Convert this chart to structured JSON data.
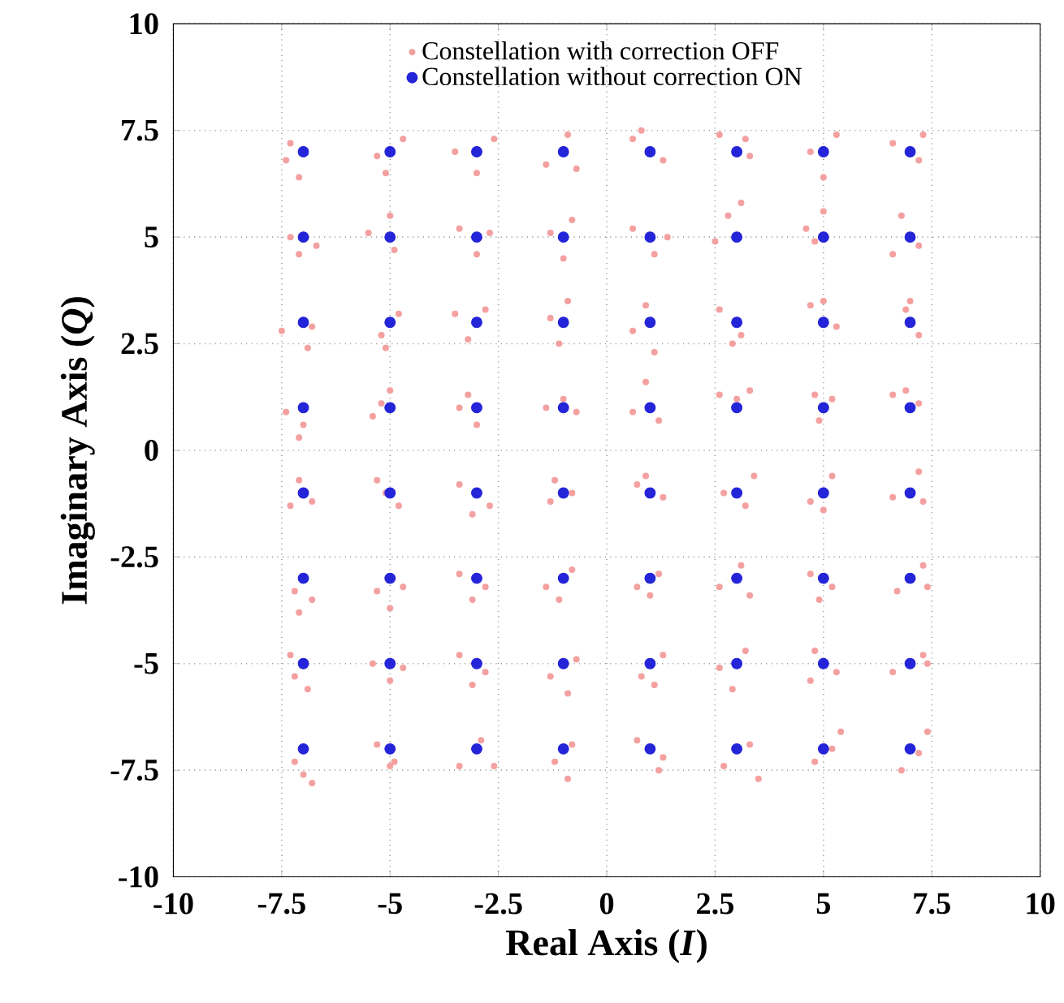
{
  "chart_data": {
    "type": "scatter",
    "xlabel": "Real Axis (*I*)",
    "ylabel": "Imaginary Axis (*Q*)",
    "xlim": [
      -10,
      10
    ],
    "ylim": [
      -10,
      10
    ],
    "xticks": [
      -10,
      -7.5,
      -5,
      -2.5,
      0,
      2.5,
      5,
      7.5,
      10
    ],
    "yticks": [
      -10,
      -7.5,
      -5,
      -2.5,
      0,
      2.5,
      5,
      7.5,
      10
    ],
    "grid": true,
    "legend": "top",
    "marker": "circle",
    "series": [
      {
        "name": "Constellation with correction OFF",
        "color": "#f4a0a0",
        "x": [
          -7.3,
          -7.1,
          -7.4,
          -5.3,
          -5.1,
          -4.7,
          -3.5,
          -3.0,
          -2.6,
          -1.4,
          -0.7,
          -0.9,
          0.6,
          1.3,
          0.8,
          2.6,
          3.3,
          3.2,
          4.7,
          5.0,
          5.3,
          6.6,
          7.2,
          7.3,
          -7.3,
          -7.1,
          -6.7,
          -5.5,
          -5.0,
          -4.9,
          -3.4,
          -3.0,
          -2.7,
          -1.3,
          -0.8,
          -1.0,
          0.6,
          1.1,
          1.4,
          2.8,
          3.1,
          2.5,
          4.6,
          4.8,
          5.0,
          6.8,
          7.2,
          6.6,
          -7.5,
          -6.8,
          -6.9,
          -5.2,
          -5.1,
          -4.8,
          -3.5,
          -3.2,
          -2.8,
          -1.3,
          -1.1,
          -0.9,
          0.6,
          1.1,
          0.9,
          2.6,
          3.1,
          2.9,
          4.7,
          5.0,
          5.3,
          6.9,
          7.2,
          7.0,
          -7.4,
          -7.0,
          -7.1,
          -5.4,
          -5.2,
          -5.0,
          -3.4,
          -3.0,
          -3.2,
          -1.4,
          -0.7,
          -1.0,
          0.6,
          0.9,
          1.2,
          2.6,
          3.3,
          3.0,
          4.8,
          5.2,
          4.9,
          6.6,
          7.2,
          6.9,
          -7.3,
          -6.8,
          -7.1,
          -5.3,
          -4.8,
          -5.1,
          -3.4,
          -2.7,
          -3.1,
          -1.3,
          -0.8,
          -1.2,
          0.7,
          0.9,
          1.3,
          2.7,
          3.2,
          3.4,
          4.7,
          5.2,
          5.0,
          6.6,
          7.2,
          7.3,
          -7.2,
          -6.8,
          -7.1,
          -5.3,
          -5.0,
          -4.7,
          -3.4,
          -3.1,
          -2.8,
          -1.4,
          -0.8,
          -1.1,
          0.7,
          1.2,
          1.0,
          2.6,
          3.1,
          3.3,
          4.7,
          5.2,
          4.9,
          6.7,
          7.3,
          7.4,
          -7.2,
          -6.9,
          -7.3,
          -5.4,
          -5.0,
          -4.7,
          -3.4,
          -3.1,
          -2.8,
          -1.3,
          -0.7,
          -0.9,
          0.8,
          1.3,
          1.1,
          2.6,
          3.2,
          2.9,
          4.7,
          5.3,
          4.8,
          6.6,
          7.3,
          7.4,
          -7.2,
          -7.0,
          -6.8,
          -5.3,
          -4.9,
          -5.0,
          -3.4,
          -2.9,
          -2.6,
          -1.2,
          -0.8,
          -0.9,
          0.7,
          1.3,
          1.2,
          2.7,
          3.3,
          3.5,
          4.8,
          5.4,
          5.2,
          6.8,
          7.4,
          7.2
        ],
        "values": [
          7.2,
          6.4,
          6.8,
          6.9,
          6.5,
          7.3,
          7.0,
          6.5,
          7.3,
          6.7,
          6.6,
          7.4,
          7.3,
          6.8,
          7.5,
          7.4,
          6.9,
          7.3,
          7.0,
          6.4,
          7.4,
          7.2,
          6.8,
          7.4,
          5.0,
          4.6,
          4.8,
          5.1,
          5.5,
          4.7,
          5.2,
          4.6,
          5.1,
          5.1,
          5.4,
          4.5,
          5.2,
          4.6,
          5.0,
          5.5,
          5.8,
          4.9,
          5.2,
          4.9,
          5.6,
          5.5,
          4.8,
          4.6,
          2.8,
          2.9,
          2.4,
          2.7,
          2.4,
          3.2,
          3.2,
          2.6,
          3.3,
          3.1,
          2.5,
          3.5,
          2.8,
          2.3,
          3.4,
          3.3,
          2.7,
          2.5,
          3.4,
          3.5,
          2.9,
          3.3,
          2.7,
          3.5,
          0.9,
          0.6,
          0.3,
          0.8,
          1.1,
          1.4,
          1.0,
          0.6,
          1.3,
          1.0,
          0.9,
          1.2,
          0.9,
          1.6,
          0.7,
          1.3,
          1.4,
          1.2,
          1.3,
          1.2,
          0.7,
          1.3,
          1.1,
          1.4,
          -1.3,
          -1.2,
          -0.7,
          -0.7,
          -1.3,
          -1.0,
          -0.8,
          -1.3,
          -1.5,
          -1.2,
          -1.0,
          -0.7,
          -0.8,
          -0.6,
          -1.1,
          -1.0,
          -1.3,
          -0.6,
          -1.2,
          -0.6,
          -1.4,
          -1.1,
          -0.5,
          -1.2,
          -3.3,
          -3.5,
          -3.8,
          -3.3,
          -3.7,
          -3.2,
          -2.9,
          -3.5,
          -3.2,
          -3.2,
          -2.8,
          -3.5,
          -3.2,
          -2.9,
          -3.4,
          -3.2,
          -2.7,
          -3.4,
          -2.9,
          -3.2,
          -3.5,
          -3.3,
          -2.7,
          -3.2,
          -5.3,
          -5.6,
          -4.8,
          -5.0,
          -5.4,
          -5.1,
          -4.8,
          -5.5,
          -5.2,
          -5.3,
          -4.9,
          -5.7,
          -5.3,
          -4.8,
          -5.5,
          -5.1,
          -4.7,
          -5.6,
          -5.4,
          -5.2,
          -4.7,
          -5.2,
          -4.8,
          -5.0,
          -7.3,
          -7.6,
          -7.8,
          -6.9,
          -7.3,
          -7.4,
          -7.4,
          -6.8,
          -7.4,
          -7.3,
          -6.9,
          -7.7,
          -6.8,
          -7.2,
          -7.5,
          -7.4,
          -6.9,
          -7.7,
          -7.3,
          -6.6,
          -7.0,
          -7.5,
          -6.6,
          -7.1
        ]
      },
      {
        "name": "Constellation without correction ON",
        "color": "#2424d8",
        "x": [
          -7,
          -5,
          -3,
          -1,
          1,
          3,
          5,
          7,
          -7,
          -5,
          -3,
          -1,
          1,
          3,
          5,
          7,
          -7,
          -5,
          -3,
          -1,
          1,
          3,
          5,
          7,
          -7,
          -5,
          -3,
          -1,
          1,
          3,
          5,
          7,
          -7,
          -5,
          -3,
          -1,
          1,
          3,
          5,
          7,
          -7,
          -5,
          -3,
          -1,
          1,
          3,
          5,
          7,
          -7,
          -5,
          -3,
          -1,
          1,
          3,
          5,
          7,
          -7,
          -5,
          -3,
          -1,
          1,
          3,
          5,
          7
        ],
        "values": [
          7,
          7,
          7,
          7,
          7,
          7,
          7,
          7,
          5,
          5,
          5,
          5,
          5,
          5,
          5,
          5,
          3,
          3,
          3,
          3,
          3,
          3,
          3,
          3,
          1,
          1,
          1,
          1,
          1,
          1,
          1,
          1,
          -1,
          -1,
          -1,
          -1,
          -1,
          -1,
          -1,
          -1,
          -3,
          -3,
          -3,
          -3,
          -3,
          -3,
          -3,
          -3,
          -5,
          -5,
          -5,
          -5,
          -5,
          -5,
          -5,
          -5,
          -7,
          -7,
          -7,
          -7,
          -7,
          -7,
          -7,
          -7
        ]
      }
    ]
  }
}
